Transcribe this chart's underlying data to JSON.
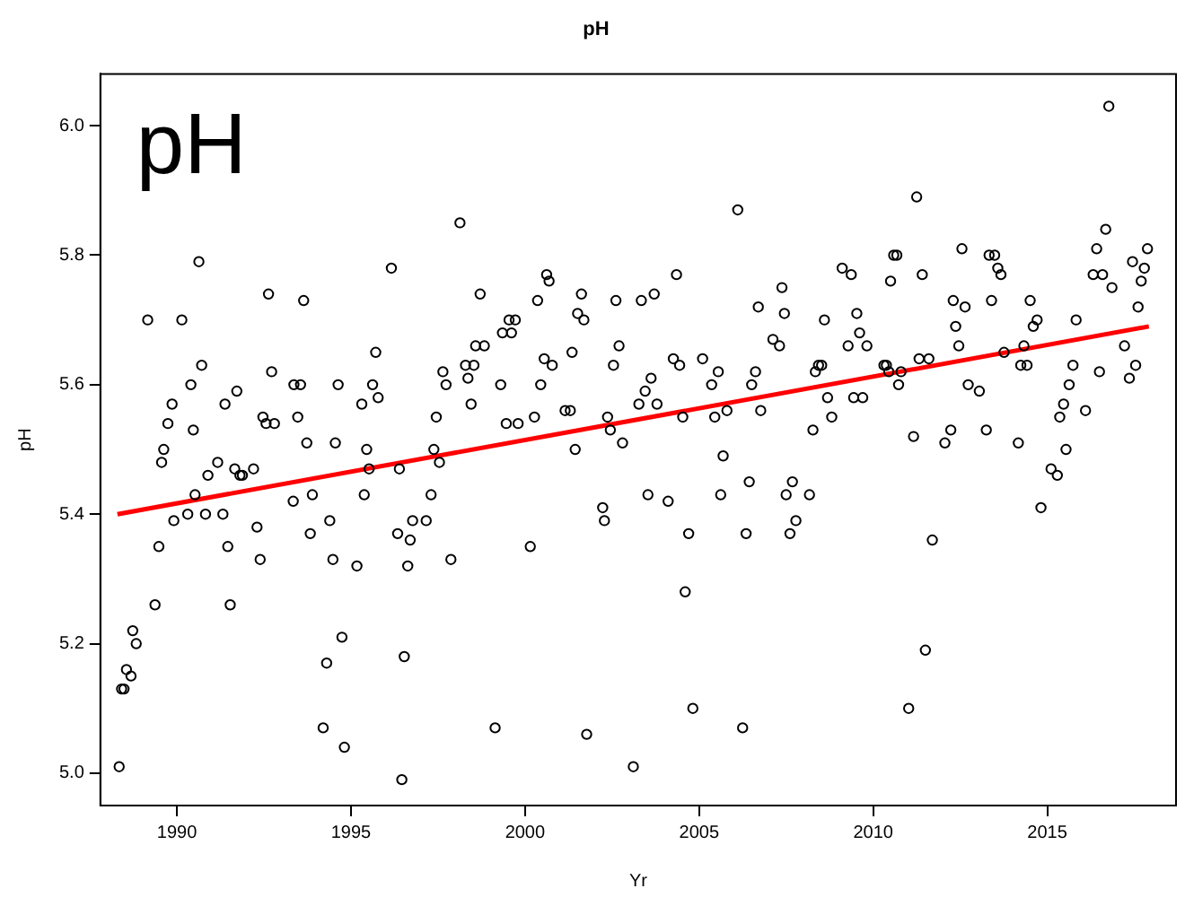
{
  "chart_data": {
    "type": "scatter",
    "title": "pH",
    "xlabel": "Yr",
    "ylabel": "pH",
    "annotations": [
      "pH"
    ],
    "xlim": [
      1987.8,
      2018.7
    ],
    "xticks": [
      1990,
      1995,
      2000,
      2005,
      2010,
      2015
    ],
    "ylim": [
      4.95,
      6.08
    ],
    "yticks": [
      {
        "value": 5,
        "label": "5.0"
      },
      {
        "value": 5.2,
        "label": "5.2"
      },
      {
        "value": 5.4,
        "label": "5.4"
      },
      {
        "value": 5.6,
        "label": "5.6"
      },
      {
        "value": 5.8,
        "label": "5.8"
      },
      {
        "value": 6,
        "label": "6.0"
      }
    ],
    "grid": false,
    "legend": false,
    "marker": "circle",
    "series": [
      {
        "color": "#000000",
        "x": [
          1990.63,
          1992.63,
          1993.64,
          1989.16,
          1990.14,
          1990.71,
          1992.72,
          1990.4,
          1991.72,
          1993.36,
          1993.55,
          1994.63,
          1989.86,
          1991.38,
          1989.74,
          1990.47,
          1992.47,
          1992.56,
          1992.8,
          1993.47,
          1989.62,
          1989.56,
          1991.17,
          1993.73,
          1994.55,
          1990.89,
          1991.66,
          1991.81,
          1991.88,
          1992.2,
          1990.52,
          1990.31,
          1989.91,
          1990.82,
          1991.32,
          1993.34,
          1993.89,
          1989.48,
          1991.46,
          1992.3,
          1993.83,
          1994.39,
          1992.39,
          1994.48,
          1989.37,
          1991.53,
          1988.73,
          1988.83,
          1988.55,
          1988.68,
          1988.41,
          1988.48,
          1994.74,
          1994.3,
          1994.2,
          1994.81,
          1988.34,
          1998.13,
          1996.16,
          2000.62,
          2000.69,
          1998.71,
          2001.62,
          2002.61,
          2000.36,
          2001.51,
          1999.54,
          1999.72,
          2001.69,
          1999.35,
          1999.61,
          1998.58,
          1998.83,
          2001.35,
          2002.7,
          1995.71,
          1998.29,
          2000.55,
          2000.78,
          1998.53,
          2002.54,
          1997.64,
          1997.73,
          1998.36,
          1995.62,
          1999.3,
          2000.45,
          1995.31,
          1995.78,
          1998.45,
          2001.15,
          2001.3,
          1997.45,
          1999.46,
          1999.8,
          2000.27,
          2002.37,
          1995.45,
          1997.38,
          1997.54,
          1996.39,
          1995.52,
          2001.44,
          2002.45,
          2002.8,
          1995.38,
          1997.3,
          2002.23,
          2002.28,
          1996.77,
          1997.16,
          1996.34,
          1996.7,
          1995.17,
          1996.63,
          1997.87,
          2000.15,
          1996.53,
          1999.14,
          2001.77,
          1996.46,
          2006.11,
          2004.35,
          2003.34,
          2003.71,
          2007.38,
          2009.11,
          2009.37,
          2006.7,
          2007.45,
          2009.53,
          2008.6,
          2007.12,
          2007.31,
          2009.61,
          2009.28,
          2009.82,
          2004.26,
          2005.1,
          2004.44,
          2005.55,
          2005.36,
          2006.62,
          2006.51,
          2003.62,
          2003.45,
          2003.27,
          2003.79,
          2004.53,
          2005.45,
          2005.8,
          2006.77,
          2008.34,
          2008.43,
          2008.52,
          2008.69,
          2009.44,
          2009.7,
          2008.81,
          2008.27,
          2010.31,
          2010.38,
          2010.45,
          2010.8,
          2010.5,
          2010.59,
          2010.68,
          2005.69,
          2003.53,
          2004.11,
          2005.62,
          2006.44,
          2007.5,
          2007.68,
          2008.17,
          2004.7,
          2006.35,
          2007.61,
          2007.78,
          2004.6,
          2004.82,
          2006.25,
          2003.11,
          2016.77,
          2011.25,
          2016.68,
          2012.55,
          2016.42,
          2017.88,
          2013.33,
          2013.49,
          2013.58,
          2013.67,
          2011.41,
          2016.32,
          2016.59,
          2017.45,
          2017.79,
          2017.7,
          2016.86,
          2012.3,
          2012.64,
          2013.4,
          2014.51,
          2017.61,
          2012.37,
          2014.71,
          2014.6,
          2015.83,
          2012.46,
          2014.33,
          2011.32,
          2011.6,
          2013.76,
          2017.22,
          2010.73,
          2012.73,
          2013.05,
          2014.24,
          2014.42,
          2015.74,
          2015.63,
          2016.5,
          2017.54,
          2017.36,
          2015.47,
          2015.36,
          2016.1,
          2011.16,
          2012.06,
          2012.23,
          2013.25,
          2014.17,
          2015.54,
          2015.11,
          2015.29,
          2014.82,
          2011.7,
          2011.5,
          2011.02
        ],
        "values": [
          5.79,
          5.74,
          5.73,
          5.7,
          5.7,
          5.63,
          5.62,
          5.6,
          5.59,
          5.6,
          5.6,
          5.6,
          5.57,
          5.57,
          5.54,
          5.53,
          5.55,
          5.54,
          5.54,
          5.55,
          5.5,
          5.48,
          5.48,
          5.51,
          5.51,
          5.46,
          5.47,
          5.46,
          5.46,
          5.47,
          5.43,
          5.4,
          5.39,
          5.4,
          5.4,
          5.42,
          5.43,
          5.35,
          5.35,
          5.38,
          5.37,
          5.39,
          5.33,
          5.33,
          5.26,
          5.26,
          5.22,
          5.2,
          5.16,
          5.15,
          5.13,
          5.13,
          5.21,
          5.17,
          5.07,
          5.04,
          5.01,
          5.85,
          5.78,
          5.77,
          5.76,
          5.74,
          5.74,
          5.73,
          5.73,
          5.71,
          5.7,
          5.7,
          5.7,
          5.68,
          5.68,
          5.66,
          5.66,
          5.65,
          5.66,
          5.65,
          5.63,
          5.64,
          5.63,
          5.63,
          5.63,
          5.62,
          5.6,
          5.61,
          5.6,
          5.6,
          5.6,
          5.57,
          5.58,
          5.57,
          5.56,
          5.56,
          5.55,
          5.54,
          5.54,
          5.55,
          5.55,
          5.5,
          5.5,
          5.48,
          5.47,
          5.47,
          5.5,
          5.53,
          5.51,
          5.43,
          5.43,
          5.41,
          5.39,
          5.39,
          5.39,
          5.37,
          5.36,
          5.32,
          5.32,
          5.33,
          5.35,
          5.18,
          5.07,
          5.06,
          4.99,
          5.87,
          5.77,
          5.73,
          5.74,
          5.75,
          5.78,
          5.77,
          5.72,
          5.71,
          5.71,
          5.7,
          5.67,
          5.66,
          5.68,
          5.66,
          5.66,
          5.64,
          5.64,
          5.63,
          5.62,
          5.6,
          5.62,
          5.6,
          5.61,
          5.59,
          5.57,
          5.57,
          5.55,
          5.55,
          5.56,
          5.56,
          5.62,
          5.63,
          5.63,
          5.58,
          5.58,
          5.58,
          5.55,
          5.53,
          5.63,
          5.63,
          5.62,
          5.62,
          5.76,
          5.8,
          5.8,
          5.49,
          5.43,
          5.42,
          5.43,
          5.45,
          5.43,
          5.45,
          5.43,
          5.37,
          5.37,
          5.37,
          5.39,
          5.28,
          5.1,
          5.07,
          5.01,
          6.03,
          5.89,
          5.84,
          5.81,
          5.81,
          5.81,
          5.8,
          5.8,
          5.78,
          5.77,
          5.77,
          5.77,
          5.77,
          5.79,
          5.78,
          5.76,
          5.75,
          5.73,
          5.72,
          5.73,
          5.73,
          5.72,
          5.69,
          5.7,
          5.69,
          5.7,
          5.66,
          5.66,
          5.64,
          5.64,
          5.65,
          5.66,
          5.6,
          5.6,
          5.59,
          5.63,
          5.63,
          5.63,
          5.6,
          5.62,
          5.63,
          5.61,
          5.57,
          5.55,
          5.56,
          5.52,
          5.51,
          5.53,
          5.53,
          5.51,
          5.5,
          5.47,
          5.46,
          5.41,
          5.36,
          5.19,
          5.1
        ]
      },
      {
        "type": "line",
        "color": "#ff0000",
        "marker": "none",
        "x": [
          1988.29,
          2017.92
        ],
        "values": [
          5.4,
          5.69
        ]
      }
    ]
  }
}
